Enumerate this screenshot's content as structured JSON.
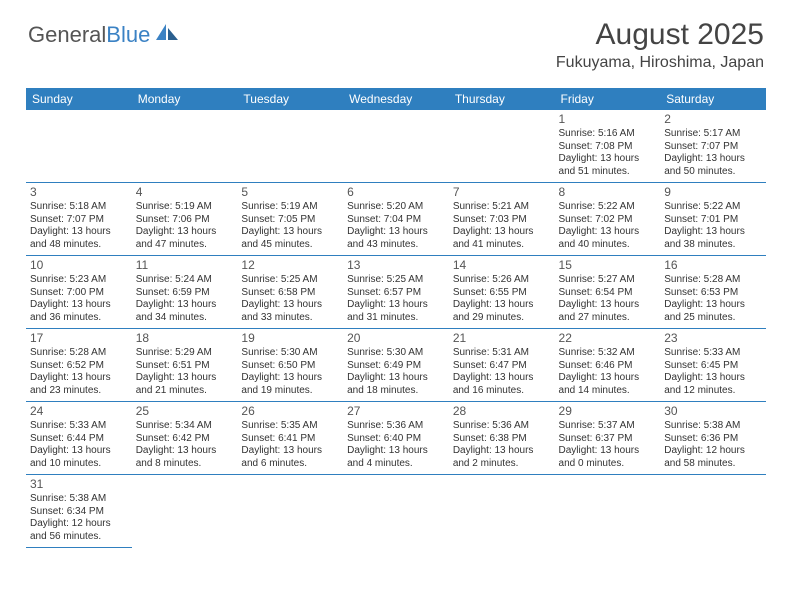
{
  "logo": {
    "text1": "General",
    "text2": "Blue"
  },
  "title": "August 2025",
  "location": "Fukuyama, Hiroshima, Japan",
  "colors": {
    "header_bg": "#2f7fbf",
    "accent": "#3b82c4"
  },
  "weekdays": [
    "Sunday",
    "Monday",
    "Tuesday",
    "Wednesday",
    "Thursday",
    "Friday",
    "Saturday"
  ],
  "weeks": [
    [
      {
        "empty": true
      },
      {
        "empty": true
      },
      {
        "empty": true
      },
      {
        "empty": true
      },
      {
        "empty": true
      },
      {
        "day": "1",
        "sunrise": "Sunrise: 5:16 AM",
        "sunset": "Sunset: 7:08 PM",
        "daylight1": "Daylight: 13 hours",
        "daylight2": "and 51 minutes."
      },
      {
        "day": "2",
        "sunrise": "Sunrise: 5:17 AM",
        "sunset": "Sunset: 7:07 PM",
        "daylight1": "Daylight: 13 hours",
        "daylight2": "and 50 minutes."
      }
    ],
    [
      {
        "day": "3",
        "sunrise": "Sunrise: 5:18 AM",
        "sunset": "Sunset: 7:07 PM",
        "daylight1": "Daylight: 13 hours",
        "daylight2": "and 48 minutes."
      },
      {
        "day": "4",
        "sunrise": "Sunrise: 5:19 AM",
        "sunset": "Sunset: 7:06 PM",
        "daylight1": "Daylight: 13 hours",
        "daylight2": "and 47 minutes."
      },
      {
        "day": "5",
        "sunrise": "Sunrise: 5:19 AM",
        "sunset": "Sunset: 7:05 PM",
        "daylight1": "Daylight: 13 hours",
        "daylight2": "and 45 minutes."
      },
      {
        "day": "6",
        "sunrise": "Sunrise: 5:20 AM",
        "sunset": "Sunset: 7:04 PM",
        "daylight1": "Daylight: 13 hours",
        "daylight2": "and 43 minutes."
      },
      {
        "day": "7",
        "sunrise": "Sunrise: 5:21 AM",
        "sunset": "Sunset: 7:03 PM",
        "daylight1": "Daylight: 13 hours",
        "daylight2": "and 41 minutes."
      },
      {
        "day": "8",
        "sunrise": "Sunrise: 5:22 AM",
        "sunset": "Sunset: 7:02 PM",
        "daylight1": "Daylight: 13 hours",
        "daylight2": "and 40 minutes."
      },
      {
        "day": "9",
        "sunrise": "Sunrise: 5:22 AM",
        "sunset": "Sunset: 7:01 PM",
        "daylight1": "Daylight: 13 hours",
        "daylight2": "and 38 minutes."
      }
    ],
    [
      {
        "day": "10",
        "sunrise": "Sunrise: 5:23 AM",
        "sunset": "Sunset: 7:00 PM",
        "daylight1": "Daylight: 13 hours",
        "daylight2": "and 36 minutes."
      },
      {
        "day": "11",
        "sunrise": "Sunrise: 5:24 AM",
        "sunset": "Sunset: 6:59 PM",
        "daylight1": "Daylight: 13 hours",
        "daylight2": "and 34 minutes."
      },
      {
        "day": "12",
        "sunrise": "Sunrise: 5:25 AM",
        "sunset": "Sunset: 6:58 PM",
        "daylight1": "Daylight: 13 hours",
        "daylight2": "and 33 minutes."
      },
      {
        "day": "13",
        "sunrise": "Sunrise: 5:25 AM",
        "sunset": "Sunset: 6:57 PM",
        "daylight1": "Daylight: 13 hours",
        "daylight2": "and 31 minutes."
      },
      {
        "day": "14",
        "sunrise": "Sunrise: 5:26 AM",
        "sunset": "Sunset: 6:55 PM",
        "daylight1": "Daylight: 13 hours",
        "daylight2": "and 29 minutes."
      },
      {
        "day": "15",
        "sunrise": "Sunrise: 5:27 AM",
        "sunset": "Sunset: 6:54 PM",
        "daylight1": "Daylight: 13 hours",
        "daylight2": "and 27 minutes."
      },
      {
        "day": "16",
        "sunrise": "Sunrise: 5:28 AM",
        "sunset": "Sunset: 6:53 PM",
        "daylight1": "Daylight: 13 hours",
        "daylight2": "and 25 minutes."
      }
    ],
    [
      {
        "day": "17",
        "sunrise": "Sunrise: 5:28 AM",
        "sunset": "Sunset: 6:52 PM",
        "daylight1": "Daylight: 13 hours",
        "daylight2": "and 23 minutes."
      },
      {
        "day": "18",
        "sunrise": "Sunrise: 5:29 AM",
        "sunset": "Sunset: 6:51 PM",
        "daylight1": "Daylight: 13 hours",
        "daylight2": "and 21 minutes."
      },
      {
        "day": "19",
        "sunrise": "Sunrise: 5:30 AM",
        "sunset": "Sunset: 6:50 PM",
        "daylight1": "Daylight: 13 hours",
        "daylight2": "and 19 minutes."
      },
      {
        "day": "20",
        "sunrise": "Sunrise: 5:30 AM",
        "sunset": "Sunset: 6:49 PM",
        "daylight1": "Daylight: 13 hours",
        "daylight2": "and 18 minutes."
      },
      {
        "day": "21",
        "sunrise": "Sunrise: 5:31 AM",
        "sunset": "Sunset: 6:47 PM",
        "daylight1": "Daylight: 13 hours",
        "daylight2": "and 16 minutes."
      },
      {
        "day": "22",
        "sunrise": "Sunrise: 5:32 AM",
        "sunset": "Sunset: 6:46 PM",
        "daylight1": "Daylight: 13 hours",
        "daylight2": "and 14 minutes."
      },
      {
        "day": "23",
        "sunrise": "Sunrise: 5:33 AM",
        "sunset": "Sunset: 6:45 PM",
        "daylight1": "Daylight: 13 hours",
        "daylight2": "and 12 minutes."
      }
    ],
    [
      {
        "day": "24",
        "sunrise": "Sunrise: 5:33 AM",
        "sunset": "Sunset: 6:44 PM",
        "daylight1": "Daylight: 13 hours",
        "daylight2": "and 10 minutes."
      },
      {
        "day": "25",
        "sunrise": "Sunrise: 5:34 AM",
        "sunset": "Sunset: 6:42 PM",
        "daylight1": "Daylight: 13 hours",
        "daylight2": "and 8 minutes."
      },
      {
        "day": "26",
        "sunrise": "Sunrise: 5:35 AM",
        "sunset": "Sunset: 6:41 PM",
        "daylight1": "Daylight: 13 hours",
        "daylight2": "and 6 minutes."
      },
      {
        "day": "27",
        "sunrise": "Sunrise: 5:36 AM",
        "sunset": "Sunset: 6:40 PM",
        "daylight1": "Daylight: 13 hours",
        "daylight2": "and 4 minutes."
      },
      {
        "day": "28",
        "sunrise": "Sunrise: 5:36 AM",
        "sunset": "Sunset: 6:38 PM",
        "daylight1": "Daylight: 13 hours",
        "daylight2": "and 2 minutes."
      },
      {
        "day": "29",
        "sunrise": "Sunrise: 5:37 AM",
        "sunset": "Sunset: 6:37 PM",
        "daylight1": "Daylight: 13 hours",
        "daylight2": "and 0 minutes."
      },
      {
        "day": "30",
        "sunrise": "Sunrise: 5:38 AM",
        "sunset": "Sunset: 6:36 PM",
        "daylight1": "Daylight: 12 hours",
        "daylight2": "and 58 minutes."
      }
    ],
    [
      {
        "day": "31",
        "sunrise": "Sunrise: 5:38 AM",
        "sunset": "Sunset: 6:34 PM",
        "daylight1": "Daylight: 12 hours",
        "daylight2": "and 56 minutes."
      },
      {
        "empty": true,
        "noborder": true
      },
      {
        "empty": true,
        "noborder": true
      },
      {
        "empty": true,
        "noborder": true
      },
      {
        "empty": true,
        "noborder": true
      },
      {
        "empty": true,
        "noborder": true
      },
      {
        "empty": true,
        "noborder": true
      }
    ]
  ]
}
